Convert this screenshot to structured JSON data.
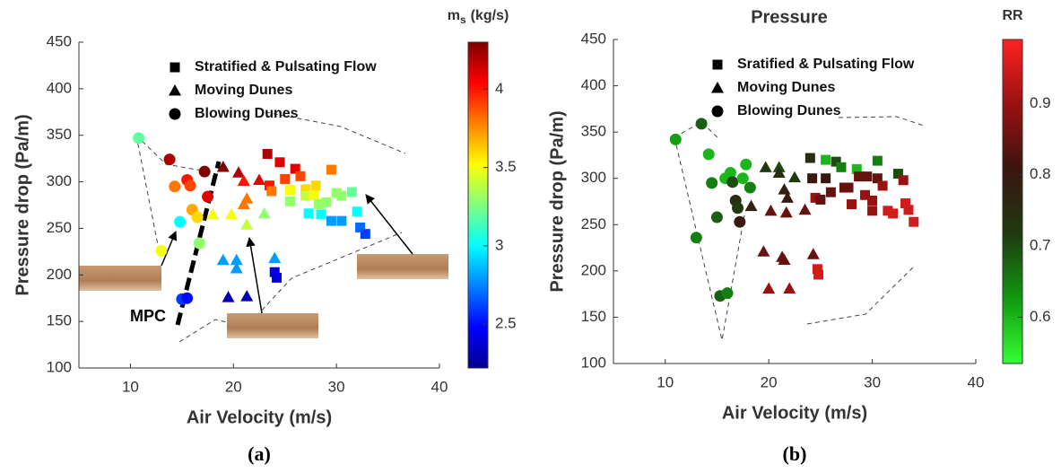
{
  "chart_data": [
    {
      "type": "scatter",
      "caption": "(a)",
      "xlabel": "Air Velocity (m/s)",
      "ylabel": "Pressure drop (Pa/m)",
      "annotation": "MPC",
      "xlim": [
        5,
        40
      ],
      "ylim": [
        100,
        450
      ],
      "xticks": [
        10,
        20,
        30,
        40
      ],
      "yticks": [
        100,
        150,
        200,
        250,
        300,
        350,
        400,
        450
      ],
      "colorbar": {
        "label": "m",
        "label_sub": "s",
        "label_unit": "(kg/s)",
        "lim": [
          2.22,
          4.3
        ],
        "ticks": [
          2.5,
          3,
          3.5,
          4
        ],
        "colormap": [
          "#00008f",
          "#0000ff",
          "#0080ff",
          "#00ffff",
          "#80ff80",
          "#ffff00",
          "#ff8000",
          "#ff0000",
          "#800000"
        ]
      },
      "series": [
        {
          "name": "Stratified & Pulsating Flow",
          "marker": "square",
          "x": [
            23.3,
            23.5,
            23.7,
            24,
            24.2,
            24.5,
            25,
            25.5,
            25.5,
            26,
            26.5,
            27,
            27,
            27.3,
            27.8,
            28,
            28.3,
            28.5,
            29,
            29.5,
            29.5,
            30,
            30.5,
            30.5,
            31.5,
            32,
            32.3,
            32.8
          ],
          "y": [
            330,
            296,
            290,
            203,
            197,
            321,
            303,
            291,
            279,
            314,
            306,
            292,
            285,
            266,
            286,
            296,
            276,
            265,
            278,
            313,
            258,
            288,
            285,
            258,
            289,
            268,
            251,
            244
          ],
          "c": [
            4.2,
            4.0,
            3.8,
            2.4,
            2.4,
            4.1,
            3.9,
            3.5,
            3.3,
            4.1,
            3.9,
            3.6,
            3.4,
            3.0,
            3.5,
            3.6,
            3.3,
            3.0,
            3.3,
            3.8,
            2.8,
            3.3,
            3.3,
            2.8,
            3.2,
            3.0,
            2.7,
            2.6
          ]
        },
        {
          "name": "Moving Dunes",
          "marker": "triangle",
          "x": [
            18,
            19,
            19,
            19.5,
            19.8,
            20.3,
            20.3,
            20.5,
            21,
            21,
            21.3,
            21.3,
            21.3,
            22.5,
            23,
            24
          ],
          "y": [
            265,
            316,
            216,
            176,
            265,
            216,
            207,
            310,
            301,
            276,
            282,
            254,
            177,
            302,
            266,
            218
          ],
          "c": [
            3.5,
            4.3,
            2.8,
            2.3,
            3.5,
            2.8,
            2.8,
            4.2,
            4.0,
            3.8,
            3.8,
            3.4,
            2.3,
            4.1,
            3.3,
            2.8
          ]
        },
        {
          "name": "Blowing Dunes",
          "marker": "circle",
          "x": [
            10.8,
            13,
            13.8,
            14.3,
            14.8,
            15.5,
            15.8,
            16,
            16.5,
            16.7,
            17.2,
            17.5,
            15,
            15.5
          ],
          "y": [
            347,
            226,
            324,
            295,
            257,
            302,
            296,
            270,
            262,
            234,
            311,
            284,
            174,
            175
          ],
          "c": [
            3.2,
            3.5,
            4.2,
            3.8,
            3.0,
            4.0,
            3.9,
            3.7,
            3.6,
            3.3,
            4.3,
            4.1,
            2.6,
            2.5
          ]
        }
      ]
    },
    {
      "type": "scatter",
      "title": "Pressure",
      "caption": "(b)",
      "xlabel": "Air Velocity (m/s)",
      "ylabel": "Pressure drop (Pa/m)",
      "xlim": [
        5,
        40
      ],
      "ylim": [
        100,
        450
      ],
      "xticks": [
        10,
        20,
        30,
        40
      ],
      "yticks": [
        100,
        150,
        200,
        250,
        300,
        350,
        400,
        450
      ],
      "colorbar": {
        "label": "RR",
        "lim": [
          0.535,
          0.99
        ],
        "ticks": [
          0.6,
          0.7,
          0.8,
          0.9
        ],
        "colormap": [
          "#33ff33",
          "#119911",
          "#1f3a10",
          "#3a1510",
          "#991111",
          "#ff2222"
        ]
      },
      "series": [
        {
          "name": "Sratified & Pulsating Flow",
          "marker": "square",
          "x": [
            24,
            24.2,
            24.5,
            24.7,
            24.8,
            25,
            25.5,
            25.5,
            26,
            26.5,
            27,
            27.3,
            27.7,
            28,
            28.5,
            28.7,
            29.3,
            29.5,
            30,
            30,
            30.5,
            30.5,
            31,
            31.5,
            32,
            32.5,
            33,
            33.2,
            33.5,
            34
          ],
          "y": [
            322,
            300,
            279,
            202,
            196,
            277,
            320,
            300,
            285,
            318,
            312,
            290,
            290,
            272,
            310,
            302,
            282,
            302,
            265,
            276,
            319,
            300,
            292,
            265,
            262,
            305,
            298,
            273,
            266,
            253
          ],
          "c": [
            0.75,
            0.8,
            0.9,
            0.95,
            0.95,
            0.85,
            0.6,
            0.8,
            0.85,
            0.7,
            0.65,
            0.85,
            0.85,
            0.9,
            0.6,
            0.85,
            0.9,
            0.85,
            0.9,
            0.9,
            0.65,
            0.85,
            0.9,
            0.95,
            0.95,
            0.7,
            0.9,
            0.95,
            0.95,
            0.95
          ]
        },
        {
          "name": "Moving Dunes",
          "marker": "triangle",
          "x": [
            18.3,
            19.5,
            19.7,
            20,
            20.2,
            21,
            21,
            21.3,
            21.5,
            21.5,
            21.7,
            21.8,
            22,
            22.5,
            23.5,
            24.3
          ],
          "y": [
            270,
            221,
            312,
            181,
            265,
            312,
            306,
            215,
            212,
            288,
            263,
            279,
            181,
            301,
            266,
            218
          ],
          "c": [
            0.78,
            0.85,
            0.72,
            0.9,
            0.85,
            0.7,
            0.75,
            0.85,
            0.85,
            0.78,
            0.85,
            0.8,
            0.9,
            0.72,
            0.85,
            0.85
          ]
        },
        {
          "name": "Blowing Dunes",
          "marker": "circle",
          "x": [
            11,
            13,
            13.5,
            14.2,
            14.5,
            15,
            15.3,
            15.8,
            16,
            16.3,
            16.5,
            16.8,
            17,
            17.2,
            17.5,
            17.8,
            18.2
          ],
          "y": [
            342,
            236,
            359,
            326,
            295,
            258,
            173,
            300,
            176,
            306,
            296,
            276,
            268,
            253,
            300,
            315,
            290
          ],
          "c": [
            0.62,
            0.65,
            0.68,
            0.6,
            0.65,
            0.68,
            0.68,
            0.6,
            0.65,
            0.6,
            0.7,
            0.75,
            0.72,
            0.8,
            0.6,
            0.6,
            0.65
          ]
        }
      ]
    }
  ]
}
